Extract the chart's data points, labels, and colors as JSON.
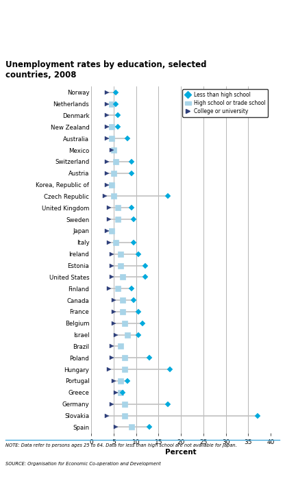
{
  "title": "Unemployment rates by education, selected\ncountries, 2008",
  "xlabel": "Percent",
  "countries": [
    "Norway",
    "Netherlands",
    "Denmark",
    "New Zealand",
    "Australia",
    "Mexico",
    "Switzerland",
    "Austria",
    "Korea, Republic of",
    "Czech Republic",
    "United Kingdom",
    "Sweden",
    "Japan",
    "Italy",
    "Ireland",
    "Estonia",
    "United States",
    "Finland",
    "Canada",
    "France",
    "Belgium",
    "Israel",
    "Brazil",
    "Poland",
    "Hungary",
    "Portugal",
    "Greece",
    "Germany",
    "Slovakia",
    "Spain"
  ],
  "college": [
    3.5,
    3.5,
    3.5,
    3.5,
    3.5,
    4.5,
    3.5,
    3.5,
    3.5,
    3.0,
    4.0,
    4.0,
    3.5,
    4.0,
    4.5,
    4.5,
    4.5,
    4.0,
    5.0,
    5.0,
    5.0,
    5.5,
    4.5,
    4.5,
    4.0,
    5.0,
    5.5,
    4.5,
    3.5,
    5.5
  ],
  "highschool": [
    null,
    4.5,
    null,
    4.5,
    4.5,
    5.0,
    5.5,
    5.0,
    4.5,
    5.0,
    6.0,
    6.0,
    4.5,
    5.5,
    6.5,
    6.5,
    7.0,
    6.0,
    7.0,
    7.0,
    7.5,
    8.0,
    6.5,
    7.5,
    7.5,
    6.5,
    6.5,
    7.5,
    7.5,
    9.0
  ],
  "lessthan": [
    5.5,
    5.5,
    6.0,
    6.0,
    8.0,
    null,
    9.0,
    9.0,
    null,
    17.0,
    9.0,
    9.5,
    null,
    9.5,
    10.5,
    12.0,
    12.0,
    9.0,
    9.5,
    10.5,
    11.5,
    10.5,
    null,
    13.0,
    17.5,
    8.0,
    7.0,
    17.0,
    37.0,
    13.0
  ],
  "color_college": "#2e3f7a",
  "color_highschool": "#a8d4e8",
  "color_lessthan": "#00aadd",
  "xlim": [
    0,
    40
  ],
  "xticks": [
    0,
    5,
    10,
    15,
    20,
    25,
    30,
    35,
    40
  ],
  "note": "NOTE: Data refer to persons ages 25 to 64. Data for less than high school are not available for Japan.",
  "source": "SOURCE: Organisation for Economic Co-operation and Development"
}
